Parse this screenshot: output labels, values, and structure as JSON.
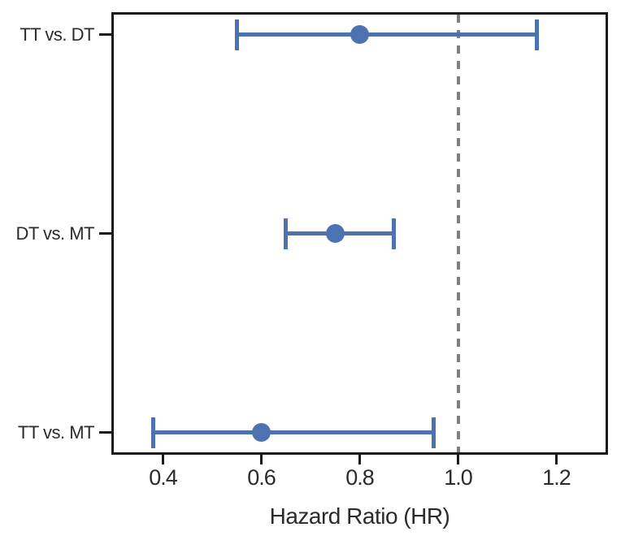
{
  "chart_data": {
    "type": "scatter",
    "subtype": "forest-plot-with-error-bars",
    "title": "",
    "xlabel": "Hazard Ratio (HR)",
    "ylabel": "",
    "xlim": [
      0.3,
      1.3
    ],
    "x_ticks": [
      0.4,
      0.6,
      0.8,
      1.0,
      1.2
    ],
    "x_tick_labels": [
      "0.4",
      "0.6",
      "0.8",
      "1.0",
      "1.2"
    ],
    "grid": false,
    "legend": "none",
    "reference_line": {
      "x": 1.0,
      "style": "dashed",
      "color": "#7f7f7f"
    },
    "rows": [
      {
        "label": "TT vs. DT",
        "hr": 0.8,
        "ci_low": 0.55,
        "ci_high": 1.16
      },
      {
        "label": "DT vs. MT",
        "hr": 0.75,
        "ci_low": 0.65,
        "ci_high": 0.87
      },
      {
        "label": "TT vs. MT",
        "hr": 0.6,
        "ci_low": 0.38,
        "ci_high": 0.95
      }
    ],
    "colors": {
      "marker": "#4C72B0",
      "errorbar": "#4C72B0",
      "spine": "#1a1a1a",
      "text": "#2b2b2b"
    }
  }
}
